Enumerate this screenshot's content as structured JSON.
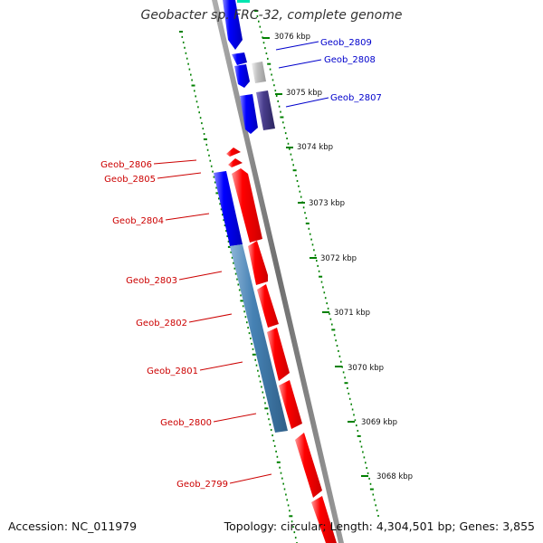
{
  "title": "Geobacter sp. FRC-32, complete genome",
  "accession_text": "Accession: NC_011979",
  "summary_text": "Topology: circular; Length: 4,304,501 bp; Genes: 3,855",
  "colors": {
    "backbone": "#808080",
    "forward_gene": "#ff0000",
    "reverse_gene": "#0000ff",
    "steelblue_gene": "#4682b4",
    "darkslate_gene": "#483d8b",
    "gray_gene": "#c0c0c0",
    "teal_gene": "#00e5b0",
    "label_forward": "#cc0000",
    "label_reverse": "#0000cc",
    "tick": "#008000"
  },
  "kbp_marks": [
    "3076 kbp",
    "3075 kbp",
    "3074 kbp",
    "3073 kbp",
    "3072 kbp",
    "3071 kbp",
    "3070 kbp",
    "3069 kbp",
    "3068 kbp"
  ],
  "genes_right": [
    "Geob_2809",
    "Geob_2808",
    "Geob_2807"
  ],
  "genes_left": [
    "Geob_2806",
    "Geob_2805",
    "Geob_2804",
    "Geob_2803",
    "Geob_2802",
    "Geob_2801",
    "Geob_2800",
    "Geob_2799"
  ]
}
